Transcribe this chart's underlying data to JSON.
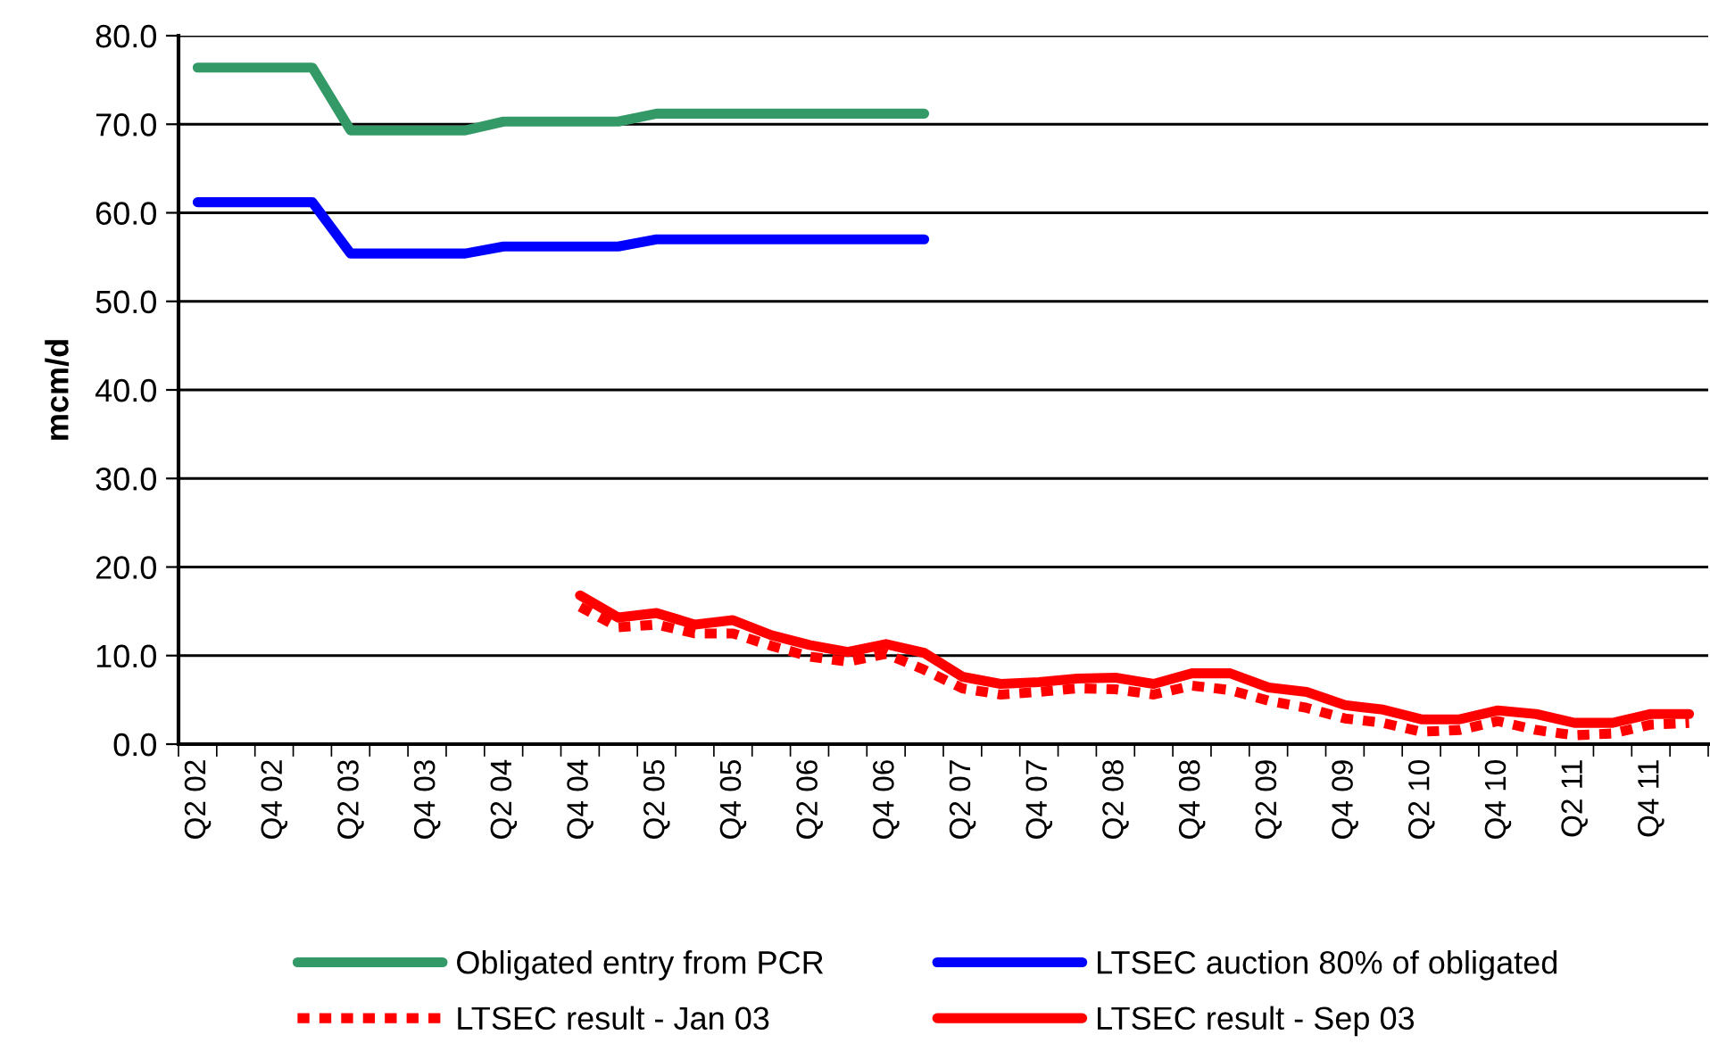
{
  "chart_data": {
    "type": "line",
    "ylabel": "mcm/d",
    "categories": [
      "Q2 02",
      null,
      "Q4 02",
      null,
      "Q2 03",
      null,
      "Q4 03",
      null,
      "Q2 04",
      null,
      "Q4 04",
      null,
      "Q2 05",
      null,
      "Q4 05",
      null,
      "Q2 06",
      null,
      "Q4 06",
      null,
      "Q2 07",
      null,
      "Q4 07",
      null,
      "Q2 08",
      null,
      "Q4 08",
      null,
      "Q2 09",
      null,
      "Q4 09",
      null,
      "Q2 10",
      null,
      "Q4 10",
      null,
      "Q2 11",
      null,
      "Q4 11",
      null
    ],
    "series": [
      {
        "name": "Obligated entry from PCR",
        "color": "#339966",
        "line_style": "solid",
        "values": [
          76.4,
          76.4,
          76.4,
          76.4,
          69.3,
          69.3,
          69.3,
          69.3,
          70.3,
          70.3,
          70.3,
          70.3,
          71.2,
          71.2,
          71.2,
          71.2,
          71.2,
          71.2,
          71.2,
          71.2,
          null,
          null,
          null,
          null,
          null,
          null,
          null,
          null,
          null,
          null,
          null,
          null,
          null,
          null,
          null,
          null,
          null,
          null,
          null,
          null
        ]
      },
      {
        "name": "LTSEC auction 80% of obligated",
        "color": "#0000ff",
        "line_style": "solid",
        "values": [
          61.2,
          61.2,
          61.2,
          61.2,
          55.4,
          55.4,
          55.4,
          55.4,
          56.2,
          56.2,
          56.2,
          56.2,
          57.0,
          57.0,
          57.0,
          57.0,
          57.0,
          57.0,
          57.0,
          57.0,
          null,
          null,
          null,
          null,
          null,
          null,
          null,
          null,
          null,
          null,
          null,
          null,
          null,
          null,
          null,
          null,
          null,
          null,
          null,
          null
        ]
      },
      {
        "name": "LTSEC result - Jan 03",
        "color": "#ff0000",
        "line_style": "dashed",
        "values": [
          null,
          null,
          null,
          null,
          null,
          null,
          null,
          null,
          null,
          null,
          15.5,
          13.2,
          13.5,
          12.5,
          12.5,
          11.1,
          9.9,
          9.3,
          10.2,
          8.4,
          6.3,
          5.6,
          5.9,
          6.3,
          6.2,
          5.6,
          6.6,
          6.1,
          4.9,
          4.1,
          2.9,
          2.4,
          1.4,
          1.6,
          2.6,
          1.6,
          1.0,
          1.2,
          2.2,
          2.4
        ]
      },
      {
        "name": "LTSEC result - Sep 03",
        "color": "#ff0000",
        "line_style": "solid",
        "values": [
          null,
          null,
          null,
          null,
          null,
          null,
          null,
          null,
          null,
          null,
          16.8,
          14.3,
          14.8,
          13.5,
          14.0,
          12.3,
          11.2,
          10.4,
          11.3,
          10.3,
          7.6,
          6.8,
          7.0,
          7.4,
          7.5,
          6.8,
          8.0,
          8.0,
          6.4,
          5.9,
          4.4,
          3.9,
          2.8,
          2.8,
          3.8,
          3.4,
          2.4,
          2.4,
          3.4,
          3.4
        ]
      }
    ],
    "ylim": [
      0,
      80
    ],
    "yticks": [
      {
        "value": 0,
        "label": "0.0"
      },
      {
        "value": 10,
        "label": "10.0"
      },
      {
        "value": 20,
        "label": "20.0"
      },
      {
        "value": 30,
        "label": "30.0"
      },
      {
        "value": 40,
        "label": "40.0"
      },
      {
        "value": 50,
        "label": "50.0"
      },
      {
        "value": 60,
        "label": "60.0"
      },
      {
        "value": 70,
        "label": "70.0"
      },
      {
        "value": 80,
        "label": "80.0"
      }
    ],
    "grid": "y",
    "legend": "bottom",
    "marker": "none"
  }
}
